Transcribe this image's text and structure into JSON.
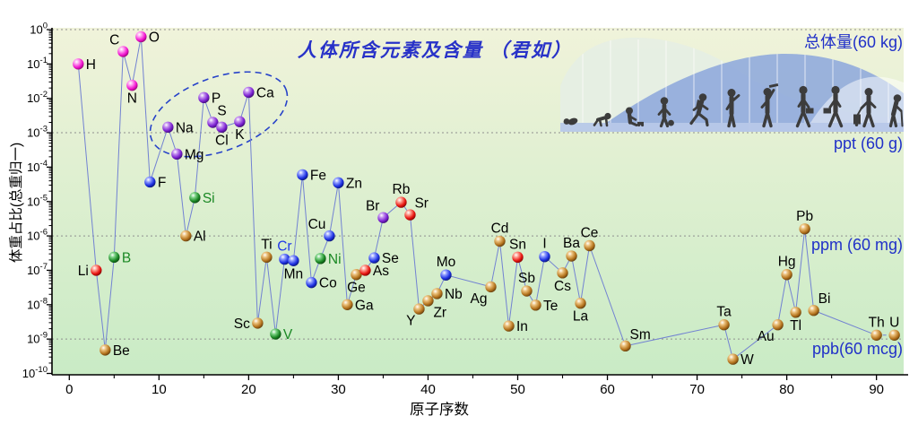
{
  "chart_data": {
    "type": "scatter",
    "title": "人体所含元素及含量 （君如）",
    "xlabel": "原子序数",
    "ylabel": "体重占比(总重归一)",
    "x_axis": {
      "major_ticks": [
        0,
        10,
        20,
        30,
        40,
        50,
        60,
        70,
        80,
        90
      ],
      "minor_tick_step": 5,
      "min": -2,
      "max": 93
    },
    "y_axis": {
      "scale": "log",
      "tick_exponents": [
        0,
        -1,
        -2,
        -3,
        -4,
        -5,
        -6,
        -7,
        -8,
        -9,
        -10
      ]
    },
    "gridlines": {
      "style": "dotted",
      "at_exponents": [
        0,
        -3,
        -6,
        -9
      ]
    },
    "annotations": {
      "total": "总体量(60 kg)",
      "ppt": "ppt (60 g)",
      "ppm": "ppm (60 mg)",
      "ppb": "ppb(60 mcg)"
    },
    "line_color": "#7282d2",
    "marker_colors": {
      "magenta": {
        "light": "#ff9df0",
        "main": "#f012ce",
        "dark": "#90086f"
      },
      "purple": {
        "light": "#c490f0",
        "main": "#7a1fd0",
        "dark": "#3c0e70"
      },
      "blue": {
        "light": "#8f9dff",
        "main": "#1c2fe0",
        "dark": "#0c1670"
      },
      "green": {
        "light": "#7fd488",
        "main": "#1a8824",
        "dark": "#0a4510"
      },
      "red": {
        "light": "#ff9d8f",
        "main": "#e81410",
        "dark": "#7a0505"
      },
      "brown": {
        "light": "#ecc27e",
        "main": "#b5741e",
        "dark": "#5f3a0c"
      }
    },
    "label_colors": {
      "black": "#000000",
      "green": "#1a8824",
      "blue": "#2038e8"
    },
    "highlight_ellipse": {
      "elements": [
        "Na",
        "Mg",
        "P",
        "S",
        "Cl",
        "K",
        "Ca"
      ],
      "color": "#2743c9"
    },
    "dashed_pairs": [
      [
        "Th",
        "U"
      ]
    ],
    "elements": [
      {
        "symbol": "H",
        "z": 1,
        "value": 0.1,
        "color": "magenta",
        "label_pos": "right"
      },
      {
        "symbol": "Li",
        "z": 3,
        "value": 1e-07,
        "color": "red",
        "label_pos": "left"
      },
      {
        "symbol": "Be",
        "z": 4,
        "value": 4.8e-10,
        "color": "brown",
        "label_pos": "right"
      },
      {
        "symbol": "B",
        "z": 5,
        "value": 2.4e-07,
        "color": "green",
        "label_pos": "right",
        "label_color": "green"
      },
      {
        "symbol": "C",
        "z": 6,
        "value": 0.23,
        "color": "magenta",
        "label_pos": "above-left"
      },
      {
        "symbol": "N",
        "z": 7,
        "value": 0.024,
        "color": "magenta",
        "label_pos": "below"
      },
      {
        "symbol": "O",
        "z": 8,
        "value": 0.62,
        "color": "magenta",
        "label_pos": "right"
      },
      {
        "symbol": "F",
        "z": 9,
        "value": 3.7e-05,
        "color": "blue",
        "label_pos": "right"
      },
      {
        "symbol": "Na",
        "z": 11,
        "value": 0.00145,
        "color": "purple",
        "label_pos": "right"
      },
      {
        "symbol": "Mg",
        "z": 12,
        "value": 0.00024,
        "color": "purple",
        "label_pos": "right"
      },
      {
        "symbol": "Al",
        "z": 13,
        "value": 1e-06,
        "color": "brown",
        "label_pos": "right"
      },
      {
        "symbol": "Si",
        "z": 14,
        "value": 1.3e-05,
        "color": "green",
        "label_pos": "right",
        "label_color": "green"
      },
      {
        "symbol": "P",
        "z": 15,
        "value": 0.0105,
        "color": "purple",
        "label_pos": "right"
      },
      {
        "symbol": "S",
        "z": 16,
        "value": 0.002,
        "color": "purple",
        "label_pos": "above-right"
      },
      {
        "symbol": "Cl",
        "z": 17,
        "value": 0.00145,
        "color": "purple",
        "label_pos": "below"
      },
      {
        "symbol": "K",
        "z": 19,
        "value": 0.0021,
        "color": "purple",
        "label_pos": "below"
      },
      {
        "symbol": "Ca",
        "z": 20,
        "value": 0.015,
        "color": "purple",
        "label_pos": "right"
      },
      {
        "symbol": "Sc",
        "z": 21,
        "value": 2.9e-09,
        "color": "brown",
        "label_pos": "left"
      },
      {
        "symbol": "Ti",
        "z": 22,
        "value": 2.4e-07,
        "color": "brown",
        "label_pos": "above"
      },
      {
        "symbol": "V",
        "z": 23,
        "value": 1.4e-09,
        "color": "green",
        "label_pos": "right",
        "label_color": "green"
      },
      {
        "symbol": "Cr",
        "z": 24,
        "value": 2.1e-07,
        "color": "blue",
        "label_pos": "above",
        "label_color": "blue"
      },
      {
        "symbol": "Mn",
        "z": 25,
        "value": 1.9e-07,
        "color": "blue",
        "label_pos": "below"
      },
      {
        "symbol": "Fe",
        "z": 26,
        "value": 6e-05,
        "color": "blue",
        "label_pos": "right"
      },
      {
        "symbol": "Co",
        "z": 27,
        "value": 4.4e-08,
        "color": "blue",
        "label_pos": "right"
      },
      {
        "symbol": "Ni",
        "z": 28,
        "value": 2.2e-07,
        "color": "green",
        "label_pos": "right",
        "label_color": "green"
      },
      {
        "symbol": "Cu",
        "z": 29,
        "value": 1e-06,
        "color": "blue",
        "label_pos": "above-left"
      },
      {
        "symbol": "Zn",
        "z": 30,
        "value": 3.5e-05,
        "color": "blue",
        "label_pos": "right"
      },
      {
        "symbol": "Ga",
        "z": 31,
        "value": 1e-08,
        "color": "brown",
        "label_pos": "right"
      },
      {
        "symbol": "Ge",
        "z": 32,
        "value": 7.5e-08,
        "color": "brown",
        "label_pos": "below"
      },
      {
        "symbol": "As",
        "z": 33,
        "value": 1e-07,
        "color": "red",
        "label_pos": "right"
      },
      {
        "symbol": "Se",
        "z": 34,
        "value": 2.3e-07,
        "color": "blue",
        "label_pos": "right"
      },
      {
        "symbol": "Br",
        "z": 35,
        "value": 3.4e-06,
        "color": "purple",
        "label_pos": "above-left"
      },
      {
        "symbol": "Rb",
        "z": 37,
        "value": 9.5e-06,
        "color": "red",
        "label_pos": "above"
      },
      {
        "symbol": "Sr",
        "z": 38,
        "value": 4.1e-06,
        "color": "red",
        "label_pos": "above-right"
      },
      {
        "symbol": "Y",
        "z": 39,
        "value": 7.5e-09,
        "color": "brown",
        "label_pos": "below-left"
      },
      {
        "symbol": "Zr",
        "z": 40,
        "value": 1.3e-08,
        "color": "brown",
        "label_pos": "below-right"
      },
      {
        "symbol": "Nb",
        "z": 41,
        "value": 2.1e-08,
        "color": "brown",
        "label_pos": "right"
      },
      {
        "symbol": "Mo",
        "z": 42,
        "value": 7.3e-08,
        "color": "blue",
        "label_pos": "above"
      },
      {
        "symbol": "Ag",
        "z": 47,
        "value": 3.3e-08,
        "color": "brown",
        "label_pos": "below-left"
      },
      {
        "symbol": "Cd",
        "z": 48,
        "value": 7e-07,
        "color": "brown",
        "label_pos": "above"
      },
      {
        "symbol": "In",
        "z": 49,
        "value": 2.4e-09,
        "color": "brown",
        "label_pos": "right"
      },
      {
        "symbol": "Sn",
        "z": 50,
        "value": 2.4e-07,
        "color": "red",
        "label_pos": "above"
      },
      {
        "symbol": "Sb",
        "z": 51,
        "value": 2.5e-08,
        "color": "brown",
        "label_pos": "above"
      },
      {
        "symbol": "Te",
        "z": 52,
        "value": 9.7e-09,
        "color": "brown",
        "label_pos": "right"
      },
      {
        "symbol": "I",
        "z": 53,
        "value": 2.5e-07,
        "color": "blue",
        "label_pos": "above"
      },
      {
        "symbol": "Cs",
        "z": 55,
        "value": 8.4e-08,
        "color": "brown",
        "label_pos": "below"
      },
      {
        "symbol": "Ba",
        "z": 56,
        "value": 2.6e-07,
        "color": "brown",
        "label_pos": "above"
      },
      {
        "symbol": "La",
        "z": 57,
        "value": 1.1e-08,
        "color": "brown",
        "label_pos": "below"
      },
      {
        "symbol": "Ce",
        "z": 58,
        "value": 5.2e-07,
        "color": "brown",
        "label_pos": "above"
      },
      {
        "symbol": "Sm",
        "z": 62,
        "value": 6.3e-10,
        "color": "brown",
        "label_pos": "above-right"
      },
      {
        "symbol": "Ta",
        "z": 73,
        "value": 2.6e-09,
        "color": "brown",
        "label_pos": "above"
      },
      {
        "symbol": "W",
        "z": 74,
        "value": 2.6e-10,
        "color": "brown",
        "label_pos": "right"
      },
      {
        "symbol": "Au",
        "z": 79,
        "value": 2.6e-09,
        "color": "brown",
        "label_pos": "below-left"
      },
      {
        "symbol": "Hg",
        "z": 80,
        "value": 7.5e-08,
        "color": "brown",
        "label_pos": "above"
      },
      {
        "symbol": "Tl",
        "z": 81,
        "value": 6e-09,
        "color": "brown",
        "label_pos": "below"
      },
      {
        "symbol": "Pb",
        "z": 82,
        "value": 1.6e-06,
        "color": "brown",
        "label_pos": "above"
      },
      {
        "symbol": "Bi",
        "z": 83,
        "value": 6.8e-09,
        "color": "brown",
        "label_pos": "above-right"
      },
      {
        "symbol": "Th",
        "z": 90,
        "value": 1.3e-09,
        "color": "brown",
        "label_pos": "above"
      },
      {
        "symbol": "U",
        "z": 92,
        "value": 1.3e-09,
        "color": "brown",
        "label_pos": "above"
      }
    ]
  },
  "illustration": {
    "people": [
      "newborn",
      "crawling-baby",
      "toddler-with-toy",
      "child-with-ball",
      "running-child",
      "waving-teen",
      "graduate",
      "businessman-with-briefcase",
      "adult-with-briefcase",
      "traveler-with-luggage",
      "elderly-with-cane"
    ],
    "colors": {
      "pale_hill": "#e6eee4",
      "blue_hill": "#8ea9dc",
      "white_cap": "#ffffff",
      "base_strip": "#b7c8e8",
      "silhouette": "#3c3c3c"
    }
  },
  "background": {
    "plot_top": "#f0f3da",
    "plot_bottom": "#c9ebc5"
  }
}
